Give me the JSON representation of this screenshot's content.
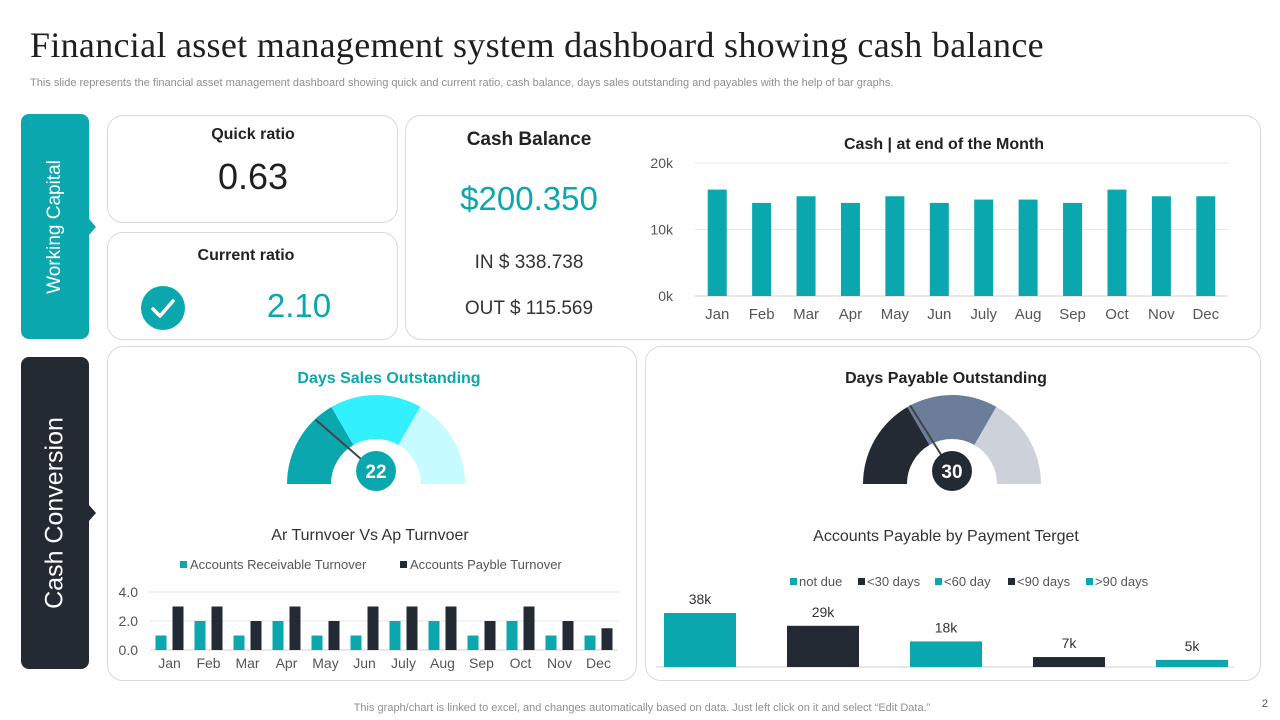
{
  "title": "Financial asset management system dashboard showing cash balance",
  "subtitle": "This slide represents the financial asset management dashboard showing quick and current ratio, cash balance, days sales outstanding and payables with the help of bar graphs.",
  "sections": {
    "working_capital": "Working Capital",
    "cash_conversion": "Cash Conversion"
  },
  "quick_ratio": {
    "label": "Quick ratio",
    "value": "0.63"
  },
  "current_ratio": {
    "label": "Current ratio",
    "value": "2.10"
  },
  "cash_balance": {
    "label": "Cash Balance",
    "value": "$200.350",
    "in_label": "IN $",
    "in_value": "338.738",
    "out_label": "OUT $",
    "out_value": "115.569"
  },
  "dso": {
    "label": "Days Sales Outstanding",
    "value": "22"
  },
  "dpo": {
    "label": "Days Payable Outstanding",
    "value": "30"
  },
  "footer": "This graph/chart is linked to excel,  and changes automatically based on data. Just left click on it and select “Edit Data.”",
  "page_number": "2",
  "colors": {
    "teal": "#0aa8ae",
    "dark": "#232a33",
    "cyan": "#33f0ff",
    "lightcyan": "#c6fbff",
    "slate": "#6b7d9a",
    "lightgray": "#ccd1da",
    "grid": "#e6e6e6"
  },
  "chart_data": [
    {
      "id": "cash_month",
      "type": "bar",
      "title": "Cash | at end of the Month",
      "categories": [
        "Jan",
        "Feb",
        "Mar",
        "Apr",
        "May",
        "Jun",
        "July",
        "Aug",
        "Sep",
        "Oct",
        "Nov",
        "Dec"
      ],
      "values": [
        16,
        14,
        15,
        14,
        15,
        14,
        14.5,
        14.5,
        14,
        16,
        15,
        15
      ],
      "ylim": [
        0,
        20
      ],
      "yticks": [
        "0k",
        "10k",
        "20k"
      ],
      "grid": true
    },
    {
      "id": "turnover",
      "type": "bar",
      "title": "Ar Turnvoer  Vs Ap Turnvoer",
      "categories": [
        "Jan",
        "Feb",
        "Mar",
        "Apr",
        "May",
        "Jun",
        "July",
        "Aug",
        "Sep",
        "Oct",
        "Nov",
        "Dec"
      ],
      "series": [
        {
          "name": "Accounts Receivable Turnover",
          "values": [
            1,
            2,
            1,
            2,
            1,
            1,
            2,
            2,
            1,
            2,
            1,
            1
          ]
        },
        {
          "name": "Accounts Payble Turnover",
          "values": [
            3,
            3,
            2,
            3,
            2,
            3,
            3,
            3,
            2,
            3,
            2,
            1.5
          ]
        }
      ],
      "ylim": [
        0,
        4
      ],
      "yticks": [
        "0.0",
        "2.0",
        "4.0"
      ],
      "legend": "top"
    },
    {
      "id": "payables",
      "type": "bar",
      "title": "Accounts Payable by Payment Terget",
      "categories": [
        "not due",
        "<30 days",
        "<60 day",
        "<90 days",
        ">90 days"
      ],
      "values": [
        38,
        29,
        18,
        7,
        5
      ],
      "labels": [
        "38k",
        "29k",
        "18k",
        "7k",
        "5k"
      ],
      "legend": "top"
    },
    {
      "id": "dso_gauge",
      "type": "pie",
      "title": "Days Sales Outstanding",
      "segments": [
        33.3,
        33.3,
        33.4
      ],
      "value": 22,
      "max": 90
    },
    {
      "id": "dpo_gauge",
      "type": "pie",
      "title": "Days Payable Outstanding",
      "segments": [
        33.3,
        33.3,
        33.4
      ],
      "value": 30,
      "max": 90
    }
  ]
}
